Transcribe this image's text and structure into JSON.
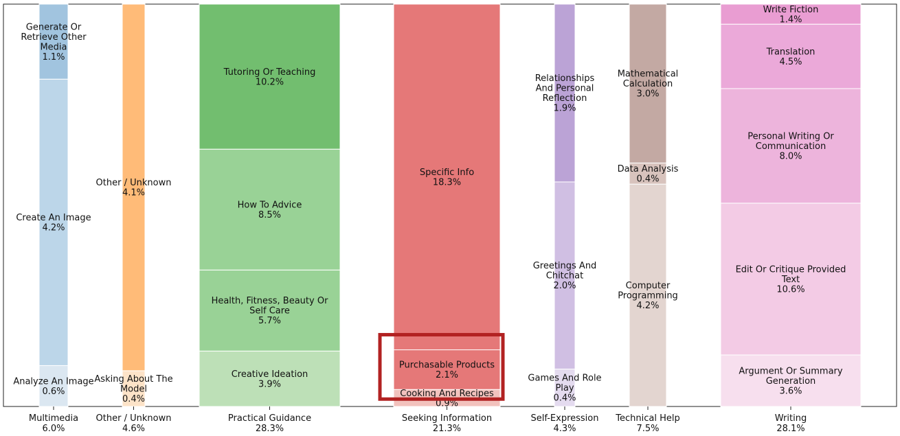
{
  "chart_data": {
    "type": "bar",
    "subtype": "stacked-variable-width",
    "title": "",
    "xlabel": "",
    "ylabel": "",
    "grid": false,
    "legend": "none",
    "categories": [
      {
        "name": "Multimedia",
        "total": "6.0%",
        "color": "#a6c8e2",
        "segments": [
          {
            "name": "Analyze An Image",
            "value": 0.6,
            "value_label": "0.6%",
            "color": "#dbe7f1"
          },
          {
            "name": "Create An Image",
            "value": 4.2,
            "value_label": "4.2%",
            "color": "#bcd6e9"
          },
          {
            "name": "Generate Or Retrieve Other Media",
            "value": 1.1,
            "value_label": "1.1%",
            "color": "#a1c4df"
          }
        ]
      },
      {
        "name": "Other / Unknown",
        "total": "4.6%",
        "color": "#ffbb78",
        "segments": [
          {
            "name": "Asking About The Model",
            "value": 0.4,
            "value_label": "0.4%",
            "color": "#fde3c8"
          },
          {
            "name": "Other / Unknown",
            "value": 4.1,
            "value_label": "4.1%",
            "color": "#ffbb78"
          }
        ]
      },
      {
        "name": "Practical Guidance",
        "total": "28.3%",
        "color": "#74c074",
        "segments": [
          {
            "name": "Creative Ideation",
            "value": 3.9,
            "value_label": "3.9%",
            "color": "#bde0b7"
          },
          {
            "name": "Health, Fitness, Beauty Or Self Care",
            "value": 5.7,
            "value_label": "5.7%",
            "color": "#99d296"
          },
          {
            "name": "How To Advice",
            "value": 8.5,
            "value_label": "8.5%",
            "color": "#99d296"
          },
          {
            "name": "Tutoring Or Teaching",
            "value": 10.2,
            "value_label": "10.2%",
            "color": "#72be6f"
          }
        ]
      },
      {
        "name": "Seeking Information",
        "total": "21.3%",
        "color": "#e57878",
        "segments": [
          {
            "name": "Cooking And Recipes",
            "value": 0.9,
            "value_label": "0.9%",
            "color": "#f2c2bd"
          },
          {
            "name": "Purchasable Products",
            "value": 2.1,
            "value_label": "2.1%",
            "color": "#e57878"
          },
          {
            "name": "Specific Info",
            "value": 18.3,
            "value_label": "18.3%",
            "color": "#e57878"
          }
        ]
      },
      {
        "name": "Self-Expression",
        "total": "4.3%",
        "color": "#bba3d6",
        "segments": [
          {
            "name": "Games And Role Play",
            "value": 0.4,
            "value_label": "0.4%",
            "color": "#e4dbef"
          },
          {
            "name": "Greetings And Chitchat",
            "value": 2.0,
            "value_label": "2.0%",
            "color": "#d0bfe3"
          },
          {
            "name": "Relationships And Personal Reflection",
            "value": 1.9,
            "value_label": "1.9%",
            "color": "#bba3d6"
          }
        ]
      },
      {
        "name": "Technical Help",
        "total": "7.5%",
        "color": "#c3a9a3",
        "segments": [
          {
            "name": "Computer Programming",
            "value": 4.2,
            "value_label": "4.2%",
            "color": "#e3d5d0"
          },
          {
            "name": "Data Analysis",
            "value": 0.4,
            "value_label": "0.4%",
            "color": "#d8c3bd"
          },
          {
            "name": "Mathematical Calculation",
            "value": 3.0,
            "value_label": "3.0%",
            "color": "#c3a9a3"
          }
        ]
      },
      {
        "name": "Writing",
        "total": "28.1%",
        "color": "#eba2d3",
        "segments": [
          {
            "name": "Argument Or Summary Generation",
            "value": 3.6,
            "value_label": "3.6%",
            "color": "#f7dfee"
          },
          {
            "name": "Edit Or Critique Provided Text",
            "value": 10.6,
            "value_label": "10.6%",
            "color": "#f3cbe5"
          },
          {
            "name": "Personal Writing Or Communication",
            "value": 8.0,
            "value_label": "8.0%",
            "color": "#edb4dc"
          },
          {
            "name": "Translation",
            "value": 4.5,
            "value_label": "4.5%",
            "color": "#eba9d9"
          },
          {
            "name": "Write Fiction",
            "value": 1.4,
            "value_label": "1.4%",
            "color": "#e99dd2"
          }
        ]
      }
    ],
    "highlight": {
      "category": "Seeking Information",
      "segment": "Purchasable Products",
      "color": "#b22222"
    }
  }
}
